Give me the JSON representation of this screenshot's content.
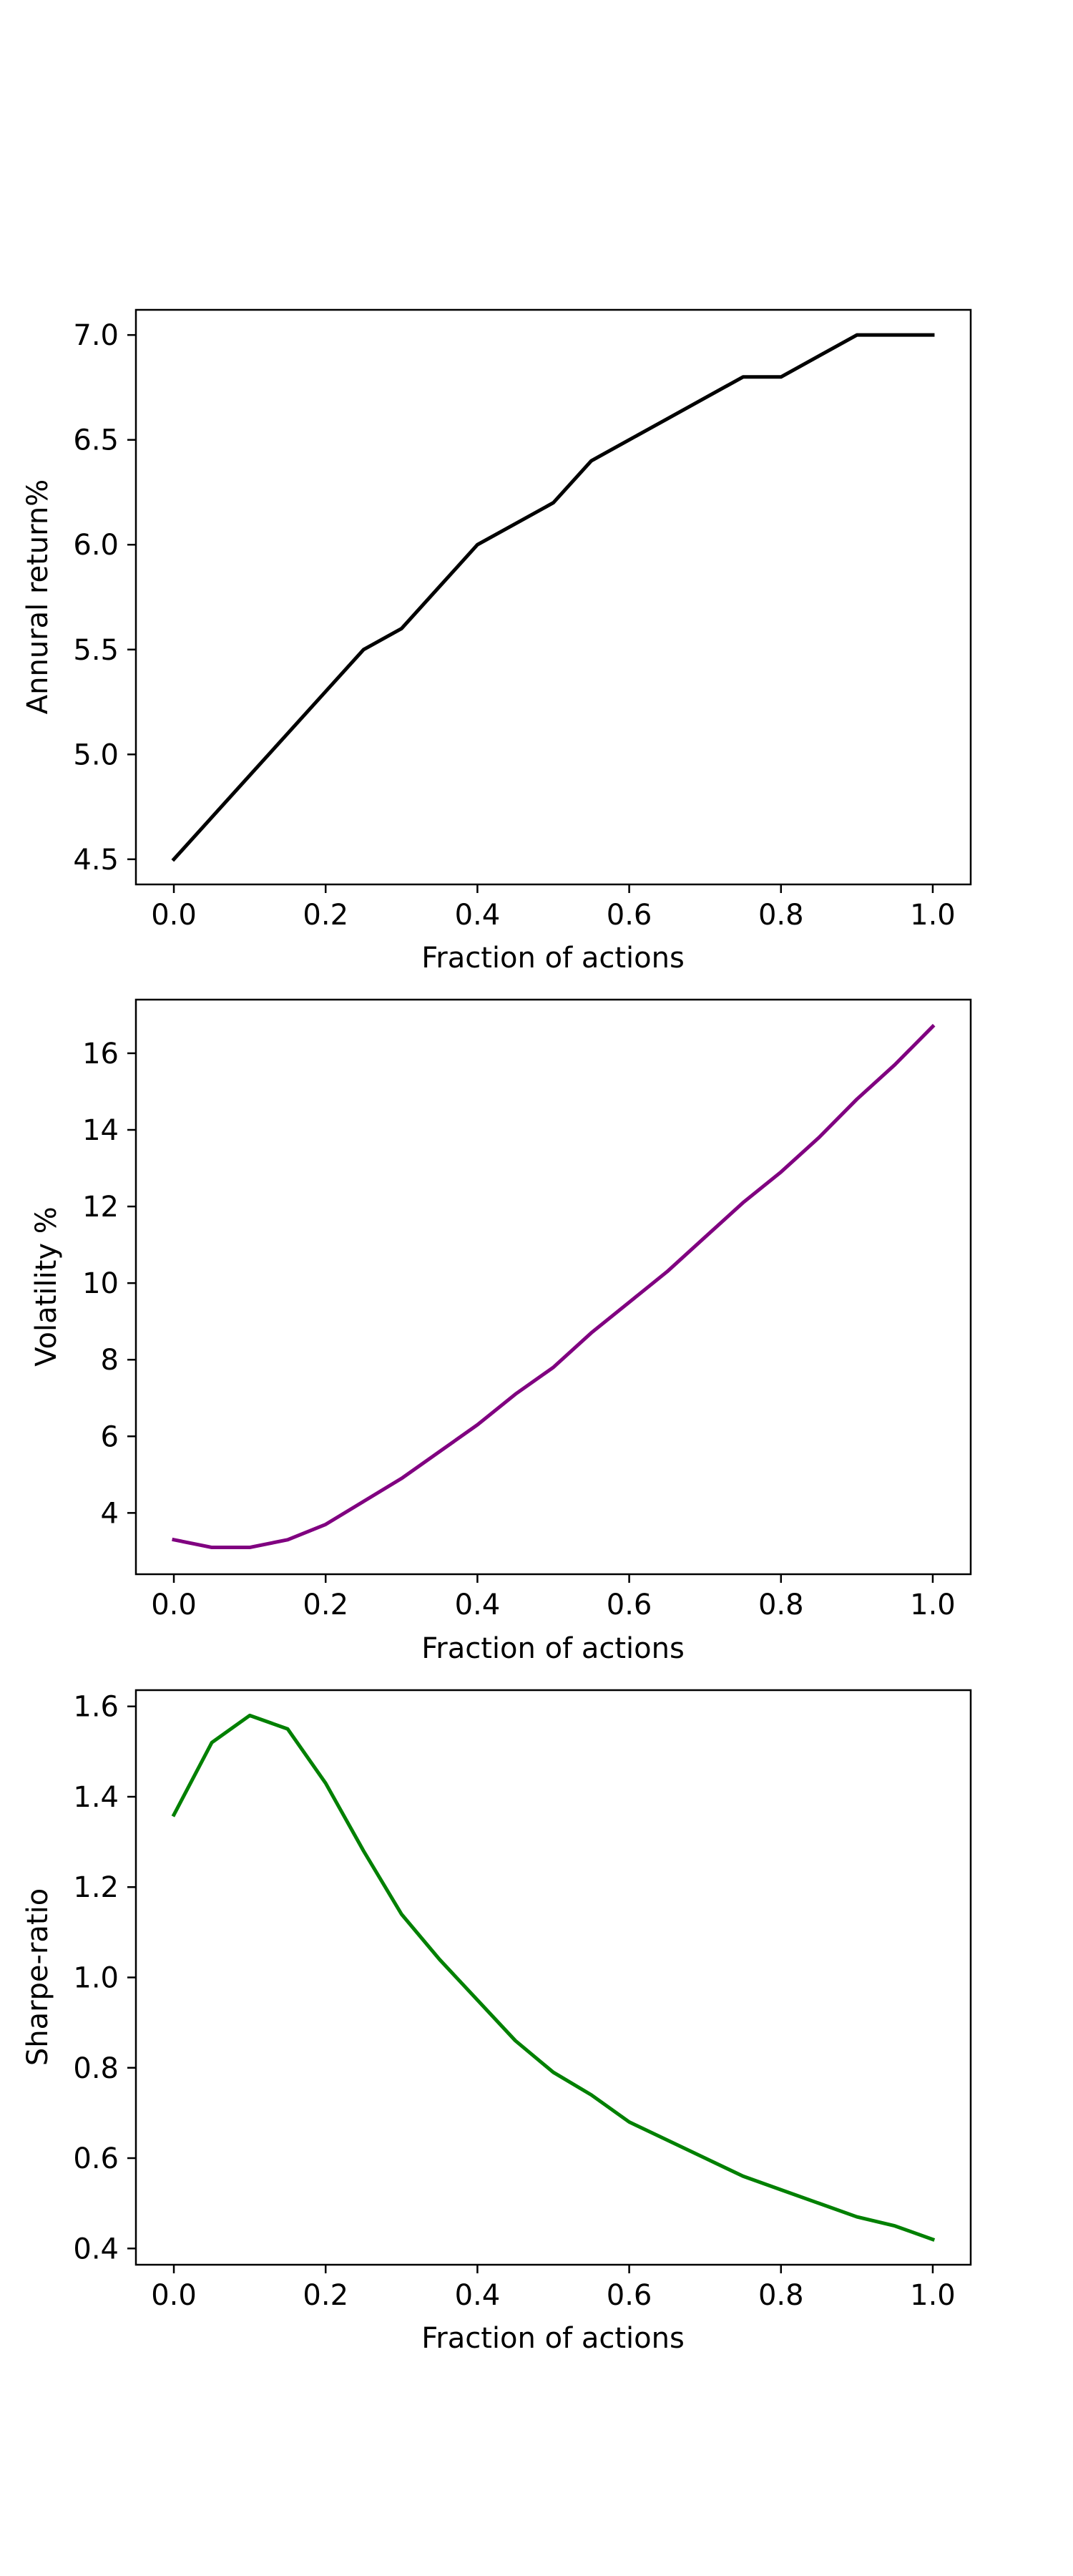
{
  "chart_data": [
    {
      "type": "line",
      "title": "",
      "xlabel": "Fraction of actions",
      "ylabel": "Annural return%",
      "xlim": [
        -0.05,
        1.05
      ],
      "ylim": [
        4.38,
        7.12
      ],
      "xticks": [
        0.0,
        0.2,
        0.4,
        0.6,
        0.8,
        1.0
      ],
      "xtick_labels": [
        "0.0",
        "0.2",
        "0.4",
        "0.6",
        "0.8",
        "1.0"
      ],
      "yticks": [
        4.5,
        5.0,
        5.5,
        6.0,
        6.5,
        7.0
      ],
      "ytick_labels": [
        "4.5",
        "5.0",
        "5.5",
        "6.0",
        "6.5",
        "7.0"
      ],
      "grid": false,
      "color": "#000000",
      "x": [
        0.0,
        0.05,
        0.1,
        0.15,
        0.2,
        0.25,
        0.3,
        0.35,
        0.4,
        0.45,
        0.5,
        0.55,
        0.6,
        0.65,
        0.7,
        0.75,
        0.8,
        0.85,
        0.9,
        0.95,
        1.0
      ],
      "y": [
        4.5,
        4.7,
        4.9,
        5.1,
        5.3,
        5.5,
        5.6,
        5.8,
        6.0,
        6.1,
        6.2,
        6.4,
        6.5,
        6.6,
        6.7,
        6.8,
        6.8,
        6.9,
        7.0,
        7.0,
        7.0
      ]
    },
    {
      "type": "line",
      "title": "",
      "xlabel": "Fraction of actions",
      "ylabel": "Volatility %",
      "xlim": [
        -0.05,
        1.05
      ],
      "ylim": [
        2.4,
        17.4
      ],
      "xticks": [
        0.0,
        0.2,
        0.4,
        0.6,
        0.8,
        1.0
      ],
      "xtick_labels": [
        "0.0",
        "0.2",
        "0.4",
        "0.6",
        "0.8",
        "1.0"
      ],
      "yticks": [
        4,
        6,
        8,
        10,
        12,
        14,
        16
      ],
      "ytick_labels": [
        "4",
        "6",
        "8",
        "10",
        "12",
        "14",
        "16"
      ],
      "grid": false,
      "color": "#800080",
      "x": [
        0.0,
        0.05,
        0.1,
        0.15,
        0.2,
        0.25,
        0.3,
        0.35,
        0.4,
        0.45,
        0.5,
        0.55,
        0.6,
        0.65,
        0.7,
        0.75,
        0.8,
        0.85,
        0.9,
        0.95,
        1.0
      ],
      "y": [
        3.3,
        3.1,
        3.1,
        3.3,
        3.7,
        4.3,
        4.9,
        5.6,
        6.3,
        7.1,
        7.8,
        8.7,
        9.5,
        10.3,
        11.2,
        12.1,
        12.9,
        13.8,
        14.8,
        15.7,
        16.7
      ]
    },
    {
      "type": "line",
      "title": "",
      "xlabel": "Fraction of actions",
      "ylabel": "Sharpe-ratio",
      "xlim": [
        -0.05,
        1.05
      ],
      "ylim": [
        0.364,
        1.636
      ],
      "xticks": [
        0.0,
        0.2,
        0.4,
        0.6,
        0.8,
        1.0
      ],
      "xtick_labels": [
        "0.0",
        "0.2",
        "0.4",
        "0.6",
        "0.8",
        "1.0"
      ],
      "yticks": [
        0.4,
        0.6,
        0.8,
        1.0,
        1.2,
        1.4,
        1.6
      ],
      "ytick_labels": [
        "0.4",
        "0.6",
        "0.8",
        "1.0",
        "1.2",
        "1.4",
        "1.6"
      ],
      "grid": false,
      "color": "#008000",
      "x": [
        0.0,
        0.05,
        0.1,
        0.15,
        0.2,
        0.25,
        0.3,
        0.35,
        0.4,
        0.45,
        0.5,
        0.55,
        0.6,
        0.65,
        0.7,
        0.75,
        0.8,
        0.85,
        0.9,
        0.95,
        1.0
      ],
      "y": [
        1.36,
        1.52,
        1.58,
        1.55,
        1.43,
        1.28,
        1.14,
        1.04,
        0.95,
        0.86,
        0.79,
        0.74,
        0.68,
        0.64,
        0.6,
        0.56,
        0.53,
        0.5,
        0.47,
        0.45,
        0.42
      ]
    }
  ]
}
